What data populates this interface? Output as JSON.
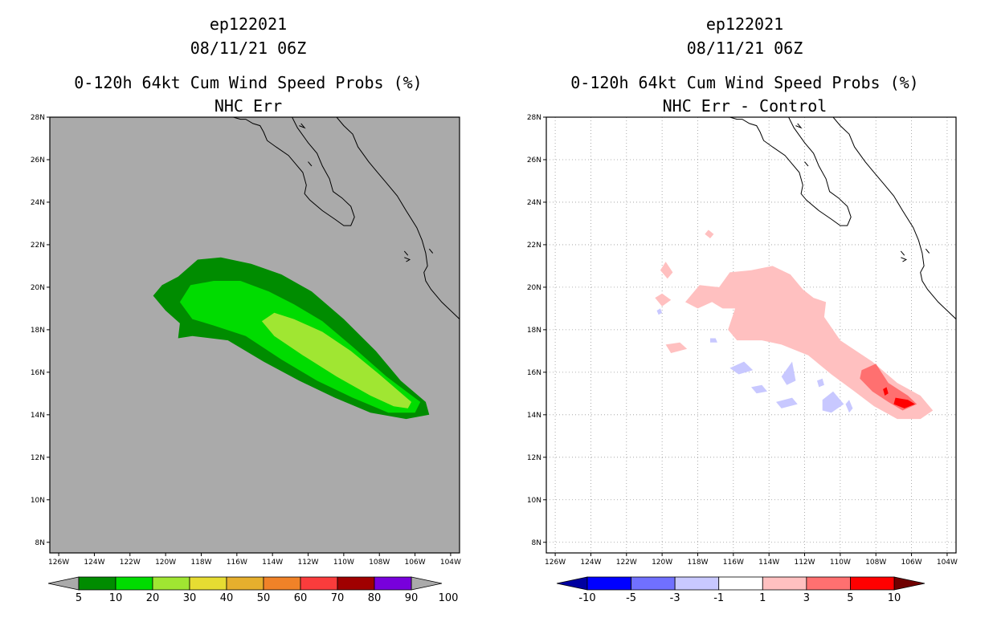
{
  "panels": [
    {
      "storm_id": "ep122021",
      "date": "08/11/21 06Z",
      "title": "0-120h 64kt Cum Wind Speed Probs (%)",
      "subtitle": "NHC Err"
    },
    {
      "storm_id": "ep122021",
      "date": "08/11/21 06Z",
      "title": "0-120h 64kt Cum Wind Speed Probs (%)",
      "subtitle": "NHC Err - Control"
    }
  ],
  "chart_data": [
    {
      "type": "heatmap",
      "title": "0-120h 64kt Cum Wind Speed Probs (%)",
      "subtitle": "NHC Err",
      "x_range": [
        -126.5,
        -103.5
      ],
      "y_range": [
        7.5,
        28
      ],
      "x_ticks": [
        "126W",
        "124W",
        "122W",
        "120W",
        "118W",
        "116W",
        "114W",
        "112W",
        "110W",
        "108W",
        "106W",
        "104W"
      ],
      "y_ticks": [
        "8N",
        "10N",
        "12N",
        "14N",
        "16N",
        "18N",
        "20N",
        "22N",
        "24N",
        "26N",
        "28N"
      ],
      "background_color": "#aaaaaa",
      "colorbar": {
        "labels": [
          "5",
          "10",
          "20",
          "30",
          "40",
          "50",
          "60",
          "70",
          "80",
          "90",
          "100"
        ],
        "colors": [
          "#008c00",
          "#00dc00",
          "#a0e632",
          "#e6dc32",
          "#e6af2d",
          "#f08228",
          "#fa3c3c",
          "#a00000",
          "#7800dc"
        ],
        "under_color": "#aaaaaa",
        "over_color": "#aaaaaa"
      },
      "contours": [
        {
          "level": 5,
          "color": "#008c00",
          "polygon": [
            [
              -120.7,
              19.6
            ],
            [
              -120.2,
              20.1
            ],
            [
              -119.3,
              20.5
            ],
            [
              -118.2,
              21.3
            ],
            [
              -116.9,
              21.4
            ],
            [
              -115.2,
              21.1
            ],
            [
              -113.5,
              20.6
            ],
            [
              -111.8,
              19.8
            ],
            [
              -110.0,
              18.5
            ],
            [
              -108.2,
              17.0
            ],
            [
              -106.8,
              15.6
            ],
            [
              -105.4,
              14.6
            ],
            [
              -105.2,
              14.0
            ],
            [
              -106.5,
              13.8
            ],
            [
              -108.5,
              14.1
            ],
            [
              -110.5,
              14.8
            ],
            [
              -112.5,
              15.6
            ],
            [
              -114.5,
              16.5
            ],
            [
              -116.5,
              17.5
            ],
            [
              -118.5,
              17.7
            ],
            [
              -119.3,
              17.6
            ],
            [
              -119.2,
              18.3
            ],
            [
              -120.0,
              18.9
            ]
          ]
        },
        {
          "level": 10,
          "color": "#00dc00",
          "polygon": [
            [
              -119.2,
              19.3
            ],
            [
              -118.6,
              20.1
            ],
            [
              -117.3,
              20.3
            ],
            [
              -115.8,
              20.3
            ],
            [
              -114.2,
              19.8
            ],
            [
              -112.8,
              19.2
            ],
            [
              -111.2,
              18.4
            ],
            [
              -109.5,
              17.2
            ],
            [
              -107.6,
              15.8
            ],
            [
              -105.7,
              14.6
            ],
            [
              -106.0,
              14.1
            ],
            [
              -107.5,
              14.1
            ],
            [
              -109.5,
              14.8
            ],
            [
              -111.5,
              15.6
            ],
            [
              -113.5,
              16.6
            ],
            [
              -115.5,
              17.7
            ],
            [
              -117.3,
              18.2
            ],
            [
              -118.5,
              18.5
            ]
          ]
        },
        {
          "level": 20,
          "color": "#a0e632",
          "polygon": [
            [
              -114.6,
              18.4
            ],
            [
              -113.9,
              18.8
            ],
            [
              -112.8,
              18.5
            ],
            [
              -111.2,
              17.9
            ],
            [
              -109.6,
              17.0
            ],
            [
              -108.0,
              15.9
            ],
            [
              -106.2,
              14.6
            ],
            [
              -106.4,
              14.3
            ],
            [
              -107.2,
              14.4
            ],
            [
              -108.5,
              14.9
            ],
            [
              -110.4,
              15.8
            ],
            [
              -112.3,
              16.8
            ],
            [
              -113.9,
              17.7
            ]
          ]
        }
      ]
    },
    {
      "type": "heatmap",
      "title": "0-120h 64kt Cum Wind Speed Probs (%)",
      "subtitle": "NHC Err - Control",
      "x_range": [
        -126.5,
        -103.5
      ],
      "y_range": [
        7.5,
        28
      ],
      "x_ticks": [
        "126W",
        "124W",
        "122W",
        "120W",
        "118W",
        "116W",
        "114W",
        "112W",
        "110W",
        "108W",
        "106W",
        "104W"
      ],
      "y_ticks": [
        "8N",
        "10N",
        "12N",
        "14N",
        "16N",
        "18N",
        "20N",
        "22N",
        "24N",
        "26N",
        "28N"
      ],
      "background_color": "#ffffff",
      "colorbar": {
        "labels": [
          "-10",
          "-5",
          "-3",
          "-1",
          "1",
          "3",
          "5",
          "10"
        ],
        "colors": [
          "#0000ff",
          "#7070ff",
          "#c8c8ff",
          "#ffffff",
          "#ffc0c0",
          "#ff7070",
          "#ff0000"
        ],
        "under_color": "#0000a0",
        "over_color": "#700000"
      },
      "contours": [
        {
          "level": 1,
          "color": "#ffc0c0",
          "polygon": [
            [
              -118.7,
              19.3
            ],
            [
              -117.9,
              20.1
            ],
            [
              -116.8,
              20.0
            ],
            [
              -116.2,
              20.7
            ],
            [
              -115.0,
              20.8
            ],
            [
              -113.8,
              21.0
            ],
            [
              -112.8,
              20.6
            ],
            [
              -112.1,
              19.9
            ],
            [
              -111.5,
              19.5
            ],
            [
              -110.8,
              19.3
            ],
            [
              -110.9,
              18.6
            ],
            [
              -110.0,
              17.5
            ],
            [
              -108.2,
              16.5
            ],
            [
              -106.8,
              15.5
            ],
            [
              -105.5,
              14.9
            ],
            [
              -104.8,
              14.2
            ],
            [
              -105.5,
              13.8
            ],
            [
              -106.8,
              13.8
            ],
            [
              -108.1,
              14.4
            ],
            [
              -109.2,
              15.1
            ],
            [
              -110.5,
              15.9
            ],
            [
              -111.8,
              16.8
            ],
            [
              -113.3,
              17.3
            ],
            [
              -114.4,
              17.5
            ],
            [
              -115.8,
              17.5
            ],
            [
              -116.3,
              18.0
            ],
            [
              -115.9,
              19.0
            ],
            [
              -116.6,
              19.0
            ],
            [
              -117.2,
              19.3
            ],
            [
              -118.0,
              19.0
            ]
          ]
        },
        {
          "level": 1,
          "color": "#ffc0c0",
          "polygon": [
            [
              -120.4,
              19.5
            ],
            [
              -120.0,
              19.1
            ],
            [
              -119.5,
              19.4
            ],
            [
              -120.0,
              19.7
            ]
          ]
        },
        {
          "level": 1,
          "color": "#ffc0c0",
          "polygon": [
            [
              -120.1,
              20.8
            ],
            [
              -119.7,
              20.4
            ],
            [
              -119.4,
              20.7
            ],
            [
              -119.8,
              21.2
            ]
          ]
        },
        {
          "level": 1,
          "color": "#ffc0c0",
          "polygon": [
            [
              -117.6,
              22.5
            ],
            [
              -117.3,
              22.3
            ],
            [
              -117.1,
              22.5
            ],
            [
              -117.4,
              22.7
            ]
          ]
        },
        {
          "level": 1,
          "color": "#ffc0c0",
          "polygon": [
            [
              -119.8,
              17.3
            ],
            [
              -119.0,
              17.4
            ],
            [
              -118.6,
              17.1
            ],
            [
              -119.5,
              16.9
            ]
          ]
        },
        {
          "level": 3,
          "color": "#ff7070",
          "polygon": [
            [
              -108.8,
              16.1
            ],
            [
              -108.0,
              16.4
            ],
            [
              -107.3,
              15.5
            ],
            [
              -106.2,
              14.9
            ],
            [
              -105.7,
              14.5
            ],
            [
              -106.5,
              14.2
            ],
            [
              -107.3,
              14.6
            ],
            [
              -108.2,
              15.1
            ],
            [
              -108.9,
              15.7
            ]
          ]
        },
        {
          "level": 5,
          "color": "#ff0000",
          "polygon": [
            [
              -106.9,
              14.8
            ],
            [
              -106.2,
              14.7
            ],
            [
              -105.8,
              14.5
            ],
            [
              -106.4,
              14.3
            ],
            [
              -107.0,
              14.5
            ]
          ]
        },
        {
          "level": 5,
          "color": "#ff0000",
          "polygon": [
            [
              -107.6,
              15.2
            ],
            [
              -107.4,
              15.3
            ],
            [
              -107.3,
              15.0
            ],
            [
              -107.5,
              14.9
            ]
          ]
        },
        {
          "level": -1,
          "color": "#c8c8ff",
          "polygon": [
            [
              -116.2,
              16.2
            ],
            [
              -115.4,
              16.5
            ],
            [
              -114.9,
              16.1
            ],
            [
              -115.7,
              15.9
            ]
          ]
        },
        {
          "level": -1,
          "color": "#c8c8ff",
          "polygon": [
            [
              -113.3,
              15.8
            ],
            [
              -112.7,
              16.5
            ],
            [
              -112.5,
              15.6
            ],
            [
              -113.0,
              15.4
            ]
          ]
        },
        {
          "level": -1,
          "color": "#c8c8ff",
          "polygon": [
            [
              -115.0,
              15.3
            ],
            [
              -114.4,
              15.4
            ],
            [
              -114.1,
              15.1
            ],
            [
              -114.7,
              15.0
            ]
          ]
        },
        {
          "level": -1,
          "color": "#c8c8ff",
          "polygon": [
            [
              -113.6,
              14.6
            ],
            [
              -112.7,
              14.8
            ],
            [
              -112.4,
              14.5
            ],
            [
              -113.3,
              14.3
            ]
          ]
        },
        {
          "level": -1,
          "color": "#c8c8ff",
          "polygon": [
            [
              -111.0,
              14.7
            ],
            [
              -110.4,
              15.1
            ],
            [
              -109.8,
              14.5
            ],
            [
              -110.5,
              14.1
            ],
            [
              -111.0,
              14.2
            ]
          ]
        },
        {
          "level": -1,
          "color": "#c8c8ff",
          "polygon": [
            [
              -111.3,
              15.6
            ],
            [
              -111.0,
              15.7
            ],
            [
              -110.9,
              15.4
            ],
            [
              -111.2,
              15.3
            ]
          ]
        },
        {
          "level": -1,
          "color": "#c8c8ff",
          "polygon": [
            [
              -109.7,
              14.5
            ],
            [
              -109.5,
              14.7
            ],
            [
              -109.3,
              14.3
            ],
            [
              -109.5,
              14.1
            ]
          ]
        },
        {
          "level": -1,
          "color": "#c8c8ff",
          "polygon": [
            [
              -117.3,
              17.6
            ],
            [
              -117.0,
              17.6
            ],
            [
              -116.9,
              17.4
            ],
            [
              -117.3,
              17.4
            ]
          ]
        },
        {
          "level": -1,
          "color": "#c8c8ff",
          "polygon": [
            [
              -120.3,
              18.9
            ],
            [
              -120.1,
              19.0
            ],
            [
              -120.0,
              18.8
            ],
            [
              -120.2,
              18.7
            ]
          ]
        }
      ]
    }
  ]
}
